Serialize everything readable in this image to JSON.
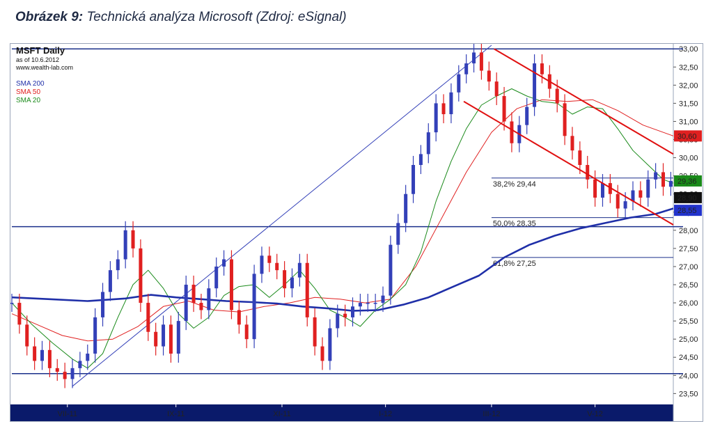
{
  "caption": {
    "label": "Obrázek 9:",
    "text": "Technická analýza Microsoft (Zdroj: eSignal)"
  },
  "chart_data": {
    "type": "line",
    "symbol": "MSFT Daily",
    "as_of": "as of 10.6.2012",
    "site": "www.wealth-lab.com",
    "ylim": [
      23.2,
      33.1
    ],
    "y_ticks": [
      "33,00",
      "32,50",
      "32,00",
      "31,50",
      "31,00",
      "30,50",
      "30,00",
      "29,50",
      "29,00",
      "28,50",
      "28,00",
      "27,50",
      "27,00",
      "26,50",
      "26,00",
      "25,50",
      "25,00",
      "24,50",
      "24,00",
      "23,50"
    ],
    "y_tick_values": [
      33.0,
      32.5,
      32.0,
      31.5,
      31.0,
      30.5,
      30.0,
      29.5,
      29.0,
      28.5,
      28.0,
      27.5,
      27.0,
      26.5,
      26.0,
      25.5,
      25.0,
      24.5,
      24.0,
      23.5
    ],
    "x_ticks": [
      {
        "label": "VII-11",
        "t": 22
      },
      {
        "label": "IX-11",
        "t": 65
      },
      {
        "label": "XI-11",
        "t": 107
      },
      {
        "label": "I-12",
        "t": 148
      },
      {
        "label": "III-12",
        "t": 190
      },
      {
        "label": "V-12",
        "t": 231
      }
    ],
    "t_range": [
      0,
      262
    ],
    "series": [
      {
        "name": "SMA 200",
        "color": "#1f2fa8",
        "width": 2.6,
        "x": [
          0,
          15,
          30,
          45,
          55,
          65,
          75,
          85,
          95,
          105,
          115,
          125,
          135,
          145,
          155,
          165,
          175,
          185,
          195,
          205,
          215,
          225,
          235,
          245,
          255,
          262
        ],
        "y": [
          26.15,
          26.1,
          26.05,
          26.12,
          26.22,
          26.15,
          26.1,
          26.05,
          26.02,
          25.98,
          25.9,
          25.85,
          25.78,
          25.8,
          25.95,
          26.15,
          26.45,
          26.75,
          27.25,
          27.6,
          27.85,
          28.05,
          28.2,
          28.35,
          28.45,
          28.6
        ]
      },
      {
        "name": "SMA 50",
        "color": "#e02020",
        "width": 1,
        "x": [
          0,
          10,
          20,
          30,
          40,
          50,
          60,
          70,
          80,
          90,
          100,
          110,
          120,
          130,
          140,
          150,
          160,
          170,
          180,
          190,
          200,
          210,
          220,
          230,
          240,
          250,
          262
        ],
        "y": [
          25.7,
          25.4,
          25.1,
          24.95,
          25.0,
          25.35,
          25.9,
          26.05,
          25.8,
          25.75,
          25.9,
          26.0,
          26.15,
          26.1,
          26.0,
          26.1,
          27.0,
          28.3,
          29.6,
          30.7,
          31.35,
          31.6,
          31.55,
          31.6,
          31.3,
          30.9,
          30.6
        ]
      },
      {
        "name": "SMA 20",
        "color": "#1a8a1a",
        "width": 1,
        "x": [
          0,
          8,
          16,
          24,
          30,
          36,
          42,
          48,
          54,
          60,
          66,
          72,
          78,
          84,
          90,
          96,
          102,
          108,
          114,
          120,
          126,
          132,
          138,
          144,
          150,
          156,
          162,
          168,
          174,
          180,
          186,
          192,
          198,
          204,
          210,
          216,
          222,
          228,
          234,
          240,
          246,
          252,
          258,
          262
        ],
        "y": [
          26.0,
          25.4,
          24.9,
          24.45,
          24.2,
          24.6,
          25.6,
          26.5,
          26.9,
          26.4,
          25.7,
          25.3,
          25.6,
          26.2,
          26.45,
          26.5,
          26.15,
          26.5,
          26.9,
          26.4,
          25.8,
          25.6,
          25.35,
          25.8,
          26.1,
          26.5,
          27.4,
          28.8,
          29.9,
          30.8,
          31.45,
          31.7,
          31.9,
          31.7,
          31.55,
          31.5,
          31.2,
          31.4,
          31.35,
          30.8,
          30.2,
          29.8,
          29.4,
          29.3
        ]
      },
      {
        "name": "Price",
        "color": "#3340b8",
        "width": 1.2,
        "x": [
          0,
          3,
          6,
          9,
          12,
          15,
          18,
          21,
          24,
          27,
          30,
          33,
          36,
          39,
          42,
          45,
          48,
          51,
          54,
          57,
          60,
          63,
          66,
          69,
          72,
          75,
          78,
          81,
          84,
          87,
          90,
          93,
          96,
          99,
          102,
          105,
          108,
          111,
          114,
          117,
          120,
          123,
          126,
          129,
          132,
          135,
          138,
          141,
          144,
          147,
          150,
          153,
          156,
          159,
          162,
          165,
          168,
          171,
          174,
          177,
          180,
          183,
          186,
          189,
          192,
          195,
          198,
          201,
          204,
          207,
          210,
          213,
          216,
          219,
          222,
          225,
          228,
          231,
          234,
          237,
          240,
          243,
          246,
          249,
          252,
          255,
          258,
          261
        ],
        "y": [
          26.0,
          25.4,
          24.8,
          24.4,
          24.7,
          24.2,
          24.1,
          23.9,
          24.2,
          24.4,
          24.6,
          25.6,
          26.3,
          26.9,
          27.2,
          28.0,
          27.5,
          26.0,
          25.2,
          24.8,
          25.4,
          24.6,
          25.5,
          26.5,
          26.0,
          25.8,
          26.4,
          27.0,
          27.2,
          25.8,
          25.4,
          25.0,
          26.8,
          27.3,
          27.1,
          26.9,
          26.4,
          26.7,
          27.1,
          25.6,
          24.8,
          24.4,
          25.3,
          25.7,
          25.6,
          25.9,
          26.0,
          26.0,
          26.0,
          26.2,
          27.6,
          28.2,
          29.0,
          29.8,
          30.1,
          30.7,
          31.5,
          31.2,
          31.8,
          32.3,
          32.6,
          32.9,
          32.4,
          32.1,
          31.7,
          31.0,
          30.4,
          30.9,
          31.4,
          32.6,
          32.3,
          31.9,
          31.5,
          30.6,
          30.2,
          29.8,
          29.4,
          28.9,
          29.3,
          29.0,
          28.6,
          28.8,
          29.1,
          28.9,
          29.4,
          29.6,
          29.2,
          29.36
        ]
      }
    ],
    "legend": [
      "SMA 200",
      "SMA 50",
      "SMA 20"
    ],
    "horizontal_lines": [
      {
        "y": 33.0,
        "color": "#1a2f8a",
        "width": 1.5
      },
      {
        "y": 28.1,
        "color": "#1a2f8a",
        "width": 1.5
      },
      {
        "y": 24.05,
        "color": "#1a2f8a",
        "width": 1.5
      }
    ],
    "fibonacci": [
      {
        "label": "38,2% 29,44",
        "y": 29.44,
        "t_start": 190
      },
      {
        "label": "50,0% 28,35",
        "y": 28.35,
        "t_start": 190
      },
      {
        "label": "61,8% 27,25",
        "y": 27.25,
        "t_start": 190
      }
    ],
    "channel_lines": [
      {
        "t0": 191,
        "y0": 33.0,
        "t1": 262,
        "y1": 30.1,
        "color": "#e01010",
        "width": 2
      },
      {
        "t0": 179,
        "y0": 31.55,
        "t1": 262,
        "y1": 28.15,
        "color": "#e01010",
        "width": 2
      }
    ],
    "trend_line": {
      "t0": 24,
      "y0": 23.7,
      "t1": 190,
      "y1": 33.1,
      "color": "#3340b8",
      "width": 1
    },
    "price_tags": [
      {
        "label": "30,60",
        "y": 30.6,
        "bg": "#e02020",
        "fg": "#ffffff"
      },
      {
        "label": "29,36",
        "y": 29.36,
        "bg": "#1a8a1a",
        "fg": "#ffffff"
      },
      {
        "label": "28,90",
        "y": 28.9,
        "bg": "#111111",
        "fg": "#ffffff"
      },
      {
        "label": "28,55",
        "y": 28.55,
        "bg": "#2233cc",
        "fg": "#ffffff"
      }
    ],
    "grid": false,
    "legend_position": "top-left"
  }
}
